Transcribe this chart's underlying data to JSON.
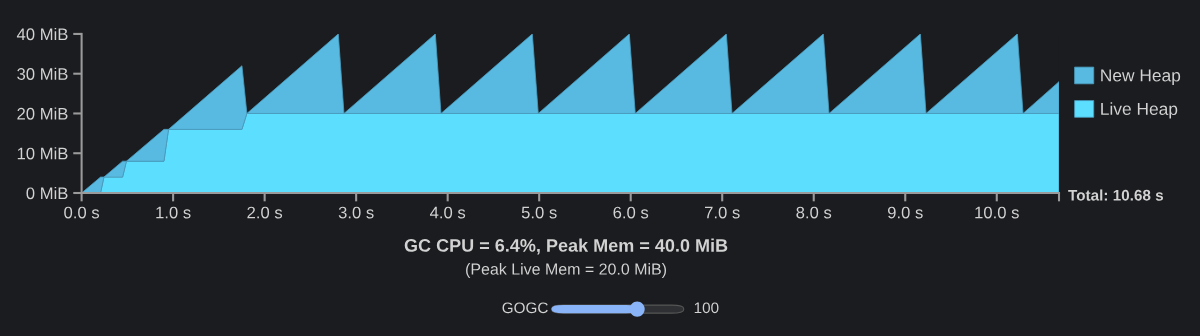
{
  "chart_data": {
    "type": "area",
    "stacked": true,
    "title": "GC CPU = 6.4%, Peak Mem = 40.0 MiB",
    "subtitle": "(Peak Live Mem = 20.0 MiB)",
    "annotations": [
      "Total: 10.68 s",
      "GOGC",
      "100"
    ],
    "x": [
      0,
      0.207,
      0.244,
      0.448,
      0.49,
      0.9,
      0.95,
      1.752,
      1.806,
      2.805,
      2.867,
      3.865,
      3.927,
      4.925,
      4.99,
      5.985,
      6.05,
      7.045,
      7.107,
      8.105,
      8.167,
      9.165,
      9.227,
      10.225,
      10.287,
      10.68
    ],
    "series": [
      {
        "name": "Live Heap",
        "color": "#5cdfff",
        "values": [
          0,
          0,
          4,
          4,
          8,
          8,
          16,
          16,
          20,
          20,
          20,
          20,
          20,
          20,
          20,
          20,
          20,
          20,
          20,
          20,
          20,
          20,
          20,
          20,
          20,
          20
        ]
      },
      {
        "name": "New Heap",
        "color": "#58bae1",
        "values": [
          0,
          4,
          0,
          4,
          0,
          8,
          0,
          16,
          0,
          20,
          0,
          20,
          0,
          20,
          0,
          20,
          0,
          20,
          0,
          20,
          0,
          20,
          0,
          20,
          0,
          8
        ]
      }
    ],
    "xlim": [
      0,
      10.68
    ],
    "xticks": [
      {
        "value": 0,
        "label": "0.0 s"
      },
      {
        "value": 1,
        "label": "1.0 s"
      },
      {
        "value": 2,
        "label": "2.0 s"
      },
      {
        "value": 3,
        "label": "3.0 s"
      },
      {
        "value": 4,
        "label": "4.0 s"
      },
      {
        "value": 5,
        "label": "5.0 s"
      },
      {
        "value": 6,
        "label": "6.0 s"
      },
      {
        "value": 7,
        "label": "7.0 s"
      },
      {
        "value": 8,
        "label": "8.0 s"
      },
      {
        "value": 9,
        "label": "9.0 s"
      },
      {
        "value": 10,
        "label": "10.0 s"
      },
      {
        "value": 10.68,
        "label": null
      }
    ],
    "ylim": [
      0,
      40
    ],
    "yticks": [
      {
        "value": 0,
        "label": "0 MiB"
      },
      {
        "value": 10,
        "label": "10 MiB"
      },
      {
        "value": 20,
        "label": "20 MiB"
      },
      {
        "value": 30,
        "label": "30 MiB"
      },
      {
        "value": 40,
        "label": "40 MiB"
      }
    ],
    "legend": "right",
    "grid": false
  }
}
